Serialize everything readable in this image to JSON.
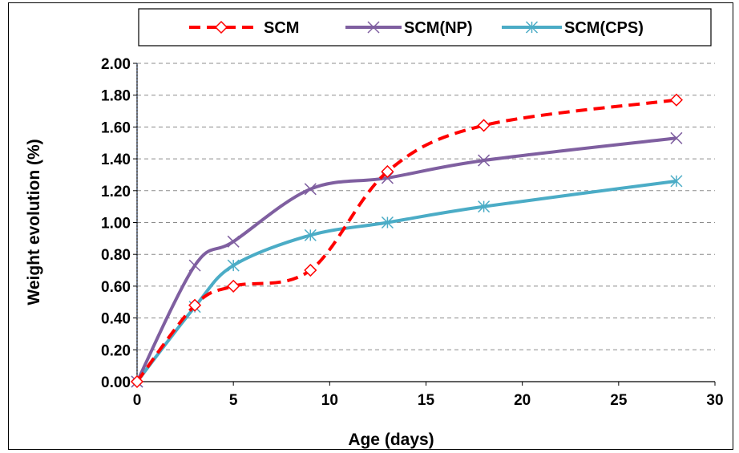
{
  "chart_data": {
    "type": "line",
    "title": "",
    "xlabel": "Age (days)",
    "ylabel": "Weight evolution (%)",
    "xlim": [
      0,
      30
    ],
    "ylim": [
      0,
      2.0
    ],
    "x_ticks": [
      "0",
      "5",
      "10",
      "15",
      "20",
      "25",
      "30"
    ],
    "y_ticks": [
      "0.00",
      "0.20",
      "0.40",
      "0.60",
      "0.80",
      "1.00",
      "1.20",
      "1.40",
      "1.60",
      "1.80",
      "2.00"
    ],
    "grid": "horizontal dashed",
    "legend_position": "top",
    "series": [
      {
        "name": "SCM",
        "color": "#ff0000",
        "line_style": "dashed",
        "marker": "diamond",
        "x": [
          0,
          3,
          5,
          9,
          13,
          18,
          28
        ],
        "y": [
          0.0,
          0.48,
          0.6,
          0.7,
          1.32,
          1.61,
          1.77
        ]
      },
      {
        "name": "SCM(NP)",
        "color": "#7f5fa0",
        "line_style": "solid",
        "marker": "x",
        "x": [
          0,
          3,
          5,
          9,
          13,
          18,
          28
        ],
        "y": [
          0.0,
          0.73,
          0.88,
          1.21,
          1.28,
          1.39,
          1.53
        ]
      },
      {
        "name": "SCM(CPS)",
        "color": "#4bacc6",
        "line_style": "solid",
        "marker": "asterisk",
        "x": [
          0,
          3,
          5,
          9,
          13,
          18,
          28
        ],
        "y": [
          0.0,
          0.47,
          0.73,
          0.92,
          1.0,
          1.1,
          1.26
        ]
      }
    ]
  }
}
